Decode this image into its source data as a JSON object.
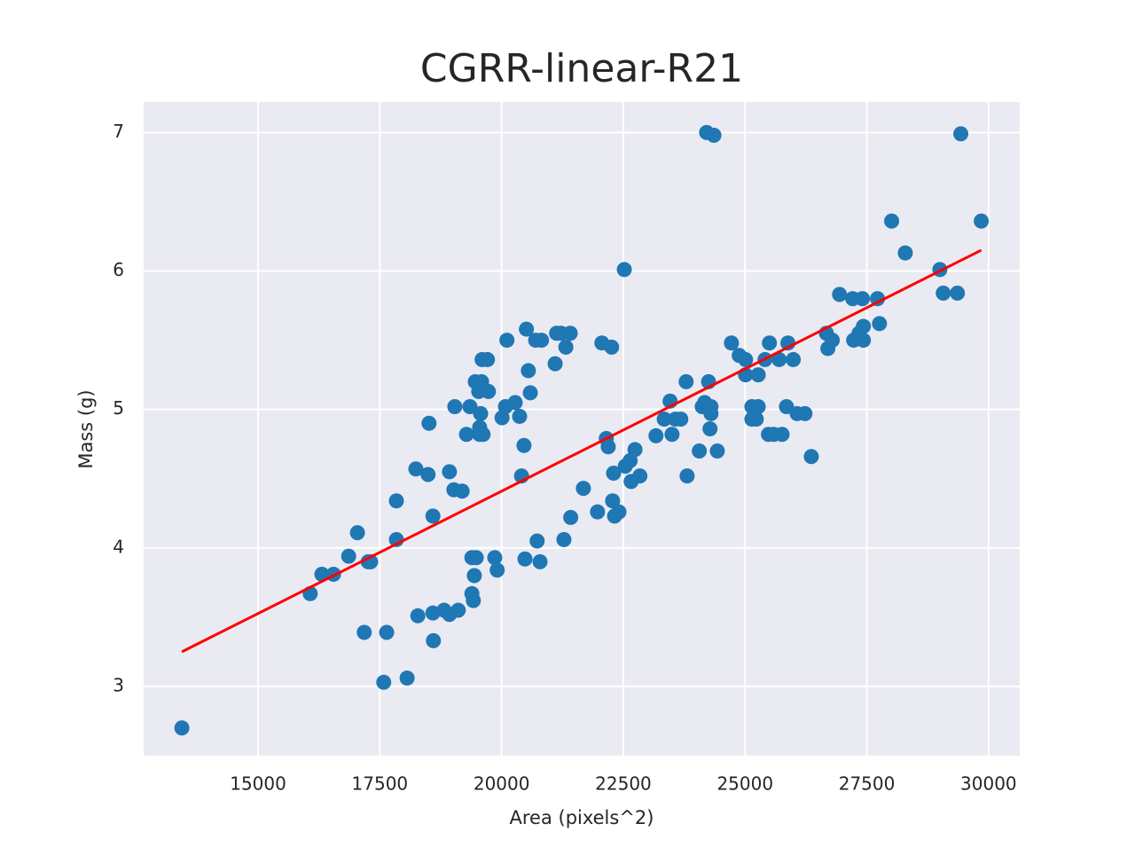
{
  "chart_data": {
    "type": "scatter",
    "title": "CGRR-linear-R21",
    "x_label": "Area (pixels^2)",
    "y_label": "Mass (g)",
    "color": "#1f77b4",
    "x": [
      13435,
      16070,
      16310,
      16550,
      16860,
      17040,
      17180,
      17260,
      17310,
      17580,
      17640,
      17840,
      17840,
      18060,
      18240,
      18280,
      18490,
      18510,
      18590,
      18590,
      18600,
      18820,
      18930,
      18930,
      19020,
      19040,
      19110,
      19190,
      19280,
      19350,
      19390,
      19390,
      19420,
      19440,
      19480,
      19460,
      19530,
      19550,
      19550,
      19570,
      19620,
      19590,
      19600,
      19710,
      19730,
      19860,
      19910,
      20010,
      20080,
      20110,
      20280,
      20370,
      20410,
      20460,
      20480,
      20510,
      20550,
      20590,
      20700,
      20730,
      20790,
      20820,
      21100,
      21130,
      21220,
      21280,
      21320,
      21410,
      21420,
      21680,
      21970,
      22060,
      22150,
      22190,
      22260,
      22280,
      22300,
      22320,
      22410,
      22520,
      22540,
      22640,
      22660,
      22740,
      22840,
      23170,
      23340,
      23460,
      23500,
      23570,
      23680,
      23790,
      23810,
      24060,
      24120,
      24170,
      24210,
      24250,
      24280,
      24300,
      24300,
      24360,
      24430,
      24720,
      24880,
      25010,
      25010,
      25140,
      25140,
      25230,
      25270,
      25270,
      25410,
      25480,
      25500,
      25590,
      25700,
      25760,
      25850,
      25880,
      25990,
      26070,
      26230,
      26360,
      26670,
      26700,
      26790,
      26940,
      27210,
      27230,
      27340,
      27410,
      27430,
      27430,
      27720,
      27760,
      28010,
      28290,
      29000,
      29070,
      29360,
      29430,
      29850
    ],
    "y": [
      2.7,
      3.67,
      3.81,
      3.81,
      3.94,
      4.11,
      3.39,
      3.9,
      3.9,
      3.03,
      3.39,
      4.34,
      4.06,
      3.06,
      4.57,
      3.51,
      4.53,
      4.9,
      4.23,
      3.53,
      3.33,
      3.55,
      4.55,
      3.52,
      4.42,
      5.02,
      3.55,
      4.41,
      4.82,
      5.02,
      3.93,
      3.67,
      3.62,
      3.8,
      3.93,
      5.2,
      5.13,
      4.87,
      4.82,
      4.97,
      4.82,
      5.2,
      5.36,
      5.36,
      5.13,
      3.93,
      3.84,
      4.94,
      5.02,
      5.5,
      5.05,
      4.95,
      4.52,
      4.74,
      3.92,
      5.58,
      5.28,
      5.12,
      5.5,
      4.05,
      3.9,
      5.5,
      5.33,
      5.55,
      5.55,
      4.06,
      5.45,
      5.55,
      4.22,
      4.43,
      4.26,
      5.48,
      4.79,
      4.73,
      5.45,
      4.34,
      4.54,
      4.23,
      4.26,
      6.01,
      4.59,
      4.63,
      4.48,
      4.71,
      4.52,
      4.81,
      4.93,
      5.06,
      4.82,
      4.93,
      4.93,
      5.2,
      4.52,
      4.7,
      5.02,
      5.05,
      7.0,
      5.2,
      4.86,
      4.97,
      5.02,
      6.98,
      4.7,
      5.48,
      5.39,
      5.36,
      5.25,
      5.02,
      4.93,
      4.93,
      5.25,
      5.02,
      5.36,
      4.82,
      5.48,
      4.82,
      5.36,
      4.82,
      5.02,
      5.48,
      5.36,
      4.97,
      4.97,
      4.66,
      5.55,
      5.44,
      5.5,
      5.83,
      5.8,
      5.5,
      5.55,
      5.8,
      5.6,
      5.5,
      5.8,
      5.62,
      6.36,
      6.13,
      6.01,
      5.84,
      5.84,
      6.99,
      6.36
    ],
    "fit_line": {
      "x": [
        13435,
        29851
      ],
      "y": [
        3.25,
        6.15
      ],
      "color": "#ff0000"
    },
    "xlim": [
      12650,
      30640
    ],
    "ylim": [
      2.5,
      7.22
    ],
    "xticks": [
      15000,
      17500,
      20000,
      22500,
      25000,
      27500,
      30000
    ],
    "yticks": [
      3,
      4,
      5,
      6,
      7
    ],
    "grid": true
  }
}
